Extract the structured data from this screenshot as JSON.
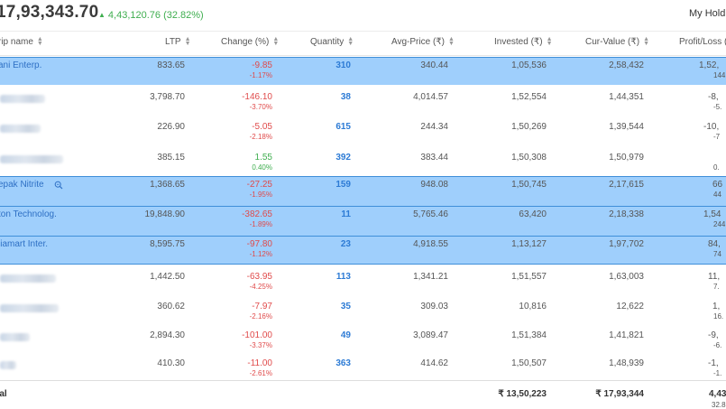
{
  "summary": {
    "total_value": "17,93,343.70",
    "gain": "4,43,120.76 (32.82%)",
    "my_holdings": "My Holdi",
    "gain_color": "#3fae4f",
    "loss_color": "#e04b4b",
    "highlight_color": "#9fcffc",
    "link_color": "#2d6fc4"
  },
  "columns": {
    "scrip": "rip name",
    "ltp": "LTP",
    "change": "Change (%)",
    "quantity": "Quantity",
    "avg_price": "Avg-Price (₹)",
    "invested": "Invested (₹)",
    "cur_value": "Cur-Value (₹)",
    "profit_loss": "Profit/Loss ("
  },
  "rows": [
    {
      "name": "ani Enterp.",
      "highlighted": true,
      "ltp": "833.65",
      "change": "-9.85",
      "change_pct": "-1.17%",
      "qty": "310",
      "avg": "340.44",
      "invested": "1,05,536",
      "cur": "2,58,432",
      "pl": "1,52,",
      "pl_sub": "144"
    },
    {
      "name": "",
      "highlighted": false,
      "ltp": "3,798.70",
      "change": "-146.10",
      "change_pct": "-3.70%",
      "qty": "38",
      "avg": "4,014.57",
      "invested": "1,52,554",
      "cur": "1,44,351",
      "pl": "-8,",
      "pl_sub": "-5."
    },
    {
      "name": "",
      "highlighted": false,
      "ltp": "226.90",
      "change": "-5.05",
      "change_pct": "-2.18%",
      "qty": "615",
      "avg": "244.34",
      "invested": "1,50,269",
      "cur": "1,39,544",
      "pl": "-10,",
      "pl_sub": "-7"
    },
    {
      "name": "",
      "highlighted": false,
      "ltp": "385.15",
      "change": "1.55",
      "change_pct": "0.40%",
      "qty": "392",
      "avg": "383.44",
      "invested": "1,50,308",
      "cur": "1,50,979",
      "pl": "",
      "pl_sub": "0."
    },
    {
      "name": "epak Nitrite",
      "highlighted": true,
      "ltp": "1,368.65",
      "change": "-27.25",
      "change_pct": "-1.95%",
      "qty": "159",
      "avg": "948.08",
      "invested": "1,50,745",
      "cur": "2,17,615",
      "pl": "66",
      "pl_sub": "44"
    },
    {
      "name": "ton Technolog.",
      "highlighted": true,
      "ltp": "19,848.90",
      "change": "-382.65",
      "change_pct": "-1.89%",
      "qty": "11",
      "avg": "5,765.46",
      "invested": "63,420",
      "cur": "2,18,338",
      "pl": "1,54",
      "pl_sub": "244"
    },
    {
      "name": "liamart Inter.",
      "highlighted": true,
      "ltp": "8,595.75",
      "change": "-97.80",
      "change_pct": "-1.12%",
      "qty": "23",
      "avg": "4,918.55",
      "invested": "1,13,127",
      "cur": "1,97,702",
      "pl": "84,",
      "pl_sub": "74"
    },
    {
      "name": "",
      "highlighted": false,
      "ltp": "1,442.50",
      "change": "-63.95",
      "change_pct": "-4.25%",
      "qty": "113",
      "avg": "1,341.21",
      "invested": "1,51,557",
      "cur": "1,63,003",
      "pl": "11,",
      "pl_sub": "7."
    },
    {
      "name": "",
      "highlighted": false,
      "ltp": "360.62",
      "change": "-7.97",
      "change_pct": "-2.16%",
      "qty": "35",
      "avg": "309.03",
      "invested": "10,816",
      "cur": "12,622",
      "pl": "1,",
      "pl_sub": "16."
    },
    {
      "name": "",
      "highlighted": false,
      "ltp": "2,894.30",
      "change": "-101.00",
      "change_pct": "-3.37%",
      "qty": "49",
      "avg": "3,089.47",
      "invested": "1,51,384",
      "cur": "1,41,821",
      "pl": "-9,",
      "pl_sub": "-6."
    },
    {
      "name": "",
      "highlighted": false,
      "ltp": "410.30",
      "change": "-11.00",
      "change_pct": "-2.61%",
      "qty": "363",
      "avg": "414.62",
      "invested": "1,50,507",
      "cur": "1,48,939",
      "pl": "-1,",
      "pl_sub": "-1."
    }
  ],
  "total": {
    "label": "tal",
    "invested": "₹ 13,50,223",
    "cur_value": "₹ 17,93,344",
    "pl": "4,43",
    "pl_sub": "32.8"
  }
}
